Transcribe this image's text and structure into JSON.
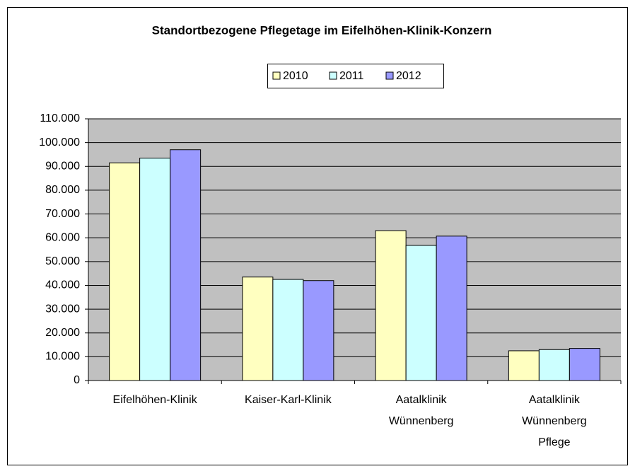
{
  "chart_data": {
    "type": "bar",
    "title": "Standortbezogene Pflegetage im Eifelhöhen-Klinik-Konzern",
    "categories": [
      "Eifelhöhen-Klinik",
      "Kaiser-Karl-Klinik",
      "Aatalklinik Wünnenberg",
      "Aatalklinik Wünnenberg Pflege"
    ],
    "series": [
      {
        "name": "2010",
        "color": "#ffffc0",
        "values": [
          91500,
          43500,
          63000,
          12500
        ]
      },
      {
        "name": "2011",
        "color": "#ccffff",
        "values": [
          93500,
          42500,
          56800,
          13000
        ]
      },
      {
        "name": "2012",
        "color": "#9999ff",
        "values": [
          97000,
          42000,
          60700,
          13500
        ]
      }
    ],
    "ylim": [
      0,
      110000
    ],
    "yticks": [
      0,
      {
        "value": 10000,
        "label": "10.000"
      },
      {
        "value": 20000,
        "label": "20.000"
      },
      {
        "value": 30000,
        "label": "30.000"
      },
      {
        "value": 40000,
        "label": "40.000"
      },
      {
        "value": 50000,
        "label": "50.000"
      },
      {
        "value": 60000,
        "label": "60.000"
      },
      {
        "value": 70000,
        "label": "70.000"
      },
      {
        "value": 80000,
        "label": "80.000"
      },
      {
        "value": 90000,
        "label": "90.000"
      },
      {
        "value": 100000,
        "label": "100.000"
      },
      {
        "value": 110000,
        "label": "110.000"
      }
    ],
    "grid": true,
    "legend": "top"
  }
}
